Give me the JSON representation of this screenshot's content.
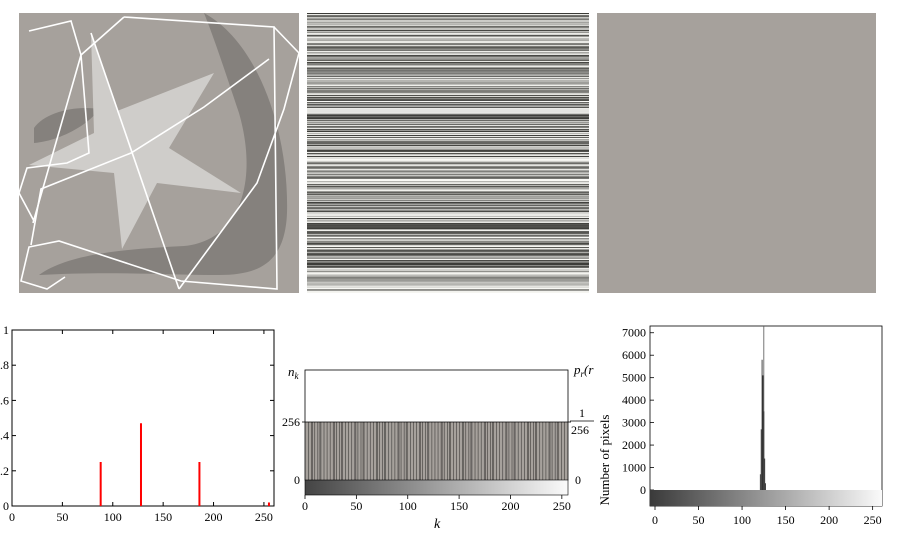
{
  "colors": {
    "panel_gray": "#a6a19c",
    "dark_gray": "#85817d",
    "star_gray": "#cfcdca",
    "line_white": "#ffffff",
    "red": "#ff0000"
  },
  "chart_data": [
    {
      "type": "bar",
      "x": [
        88,
        128,
        186,
        255
      ],
      "values": [
        0.25,
        0.47,
        0.25,
        0.02
      ],
      "xlim": [
        0,
        260
      ],
      "ylim": [
        0,
        1
      ],
      "xticks": [
        "0",
        "50",
        "100",
        "150",
        "200",
        "250"
      ],
      "yticks": [
        "0",
        ".2",
        ".4",
        ".6",
        ".8",
        "1"
      ]
    },
    {
      "type": "bar",
      "left_label": "n",
      "left_label_sub": "k",
      "right_label": "p",
      "right_label_sub": "r",
      "right_label_tail": "(r",
      "left_tick_256": "256",
      "left_tick_0": "0",
      "right_tick_num": "1",
      "right_tick_den": "256",
      "right_tick_0": "0",
      "level": 256,
      "xticks": [
        "0",
        "50",
        "100",
        "150",
        "200",
        "250"
      ],
      "xlabel": "k"
    },
    {
      "type": "bar",
      "ylabel": "Number of pixels",
      "yticks": [
        "0",
        "1000",
        "2000",
        "3000",
        "4000",
        "5000",
        "6000",
        "7000"
      ],
      "xticks": [
        "0",
        "50",
        "100",
        "150",
        "200",
        "250"
      ],
      "x": [
        121,
        122,
        123,
        124,
        125,
        126,
        127
      ],
      "values": [
        700,
        2700,
        5800,
        5100,
        3500,
        1400,
        300
      ],
      "peak_line": 125,
      "ylim": [
        0,
        7300
      ]
    }
  ]
}
